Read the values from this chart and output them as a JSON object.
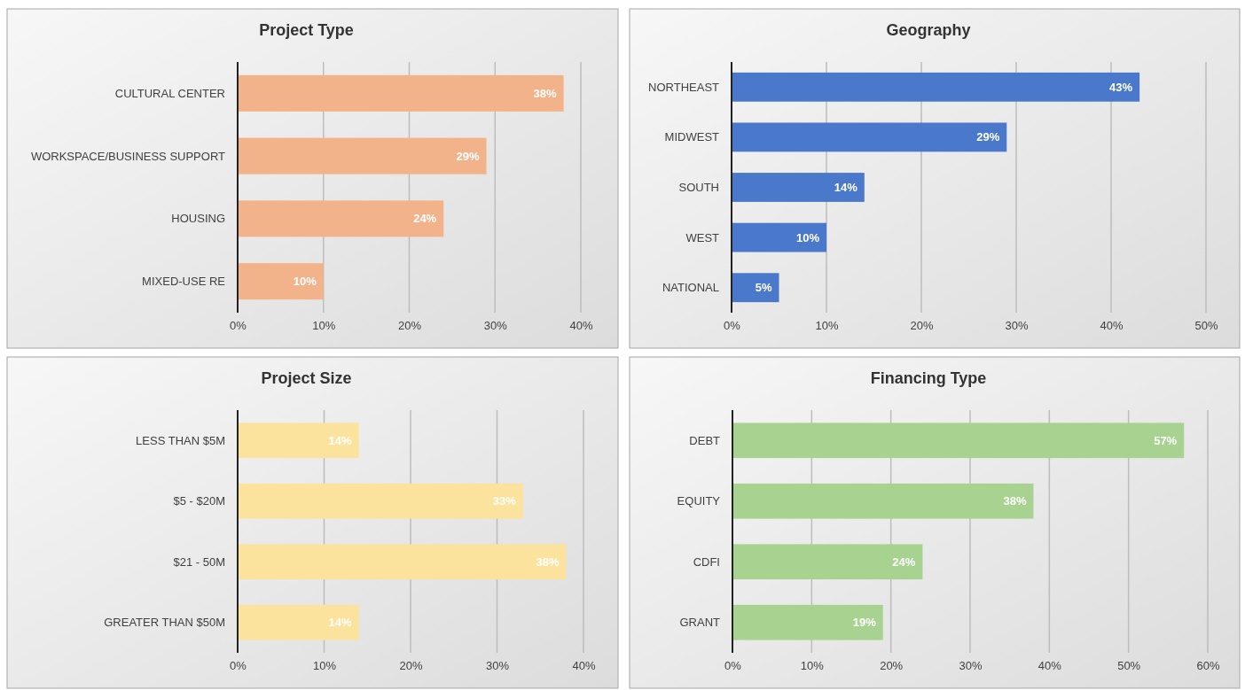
{
  "chart_data": [
    {
      "type": "bar",
      "orientation": "horizontal",
      "title": "Project Type",
      "categories": [
        "CULTURAL CENTER",
        "WORKSPACE/BUSINESS SUPPORT",
        "HOUSING",
        "MIXED-USE RE"
      ],
      "values": [
        38,
        29,
        24,
        10
      ],
      "value_labels": [
        "38%",
        "29%",
        "24%",
        "10%"
      ],
      "color": "#f3b38a",
      "xlim": [
        0,
        40
      ],
      "xticks": [
        {
          "value": 0,
          "label": "0%"
        },
        {
          "value": 10,
          "label": "10%"
        },
        {
          "value": 20,
          "label": "20%"
        },
        {
          "value": 30,
          "label": "30%"
        },
        {
          "value": 40,
          "label": "40%"
        }
      ],
      "grid": "x"
    },
    {
      "type": "bar",
      "orientation": "horizontal",
      "title": "Geography",
      "categories": [
        "NORTHEAST",
        "MIDWEST",
        "SOUTH",
        "WEST",
        "NATIONAL"
      ],
      "values": [
        43,
        29,
        14,
        10,
        5
      ],
      "value_labels": [
        "43%",
        "29%",
        "14%",
        "10%",
        "5%"
      ],
      "color": "#4a78cb",
      "xlim": [
        0,
        50
      ],
      "xticks": [
        {
          "value": 0,
          "label": "0%"
        },
        {
          "value": 10,
          "label": "10%"
        },
        {
          "value": 20,
          "label": "20%"
        },
        {
          "value": 30,
          "label": "30%"
        },
        {
          "value": 40,
          "label": "40%"
        },
        {
          "value": 50,
          "label": "50%"
        }
      ],
      "grid": "x"
    },
    {
      "type": "bar",
      "orientation": "horizontal",
      "title": "Project Size",
      "categories": [
        "LESS THAN $5M",
        "$5 - $20M",
        "$21 - 50M",
        "GREATER THAN $50M"
      ],
      "values": [
        14,
        33,
        38,
        14
      ],
      "value_labels": [
        "14%",
        "33%",
        "38%",
        "14%"
      ],
      "color": "#fbe29d",
      "xlim": [
        0,
        40
      ],
      "xticks": [
        {
          "value": 0,
          "label": "0%"
        },
        {
          "value": 10,
          "label": "10%"
        },
        {
          "value": 20,
          "label": "20%"
        },
        {
          "value": 30,
          "label": "30%"
        },
        {
          "value": 40,
          "label": "40%"
        }
      ],
      "grid": "x"
    },
    {
      "type": "bar",
      "orientation": "horizontal",
      "title": "Financing Type",
      "categories": [
        "DEBT",
        "EQUITY",
        "CDFI",
        "GRANT"
      ],
      "values": [
        57,
        38,
        24,
        19
      ],
      "value_labels": [
        "57%",
        "38%",
        "24%",
        "19%"
      ],
      "color": "#a8d290",
      "xlim": [
        0,
        60
      ],
      "xticks": [
        {
          "value": 0,
          "label": "0%"
        },
        {
          "value": 10,
          "label": "10%"
        },
        {
          "value": 20,
          "label": "20%"
        },
        {
          "value": 30,
          "label": "30%"
        },
        {
          "value": 40,
          "label": "40%"
        },
        {
          "value": 50,
          "label": "50%"
        },
        {
          "value": 60,
          "label": "60%"
        }
      ],
      "grid": "x"
    }
  ]
}
